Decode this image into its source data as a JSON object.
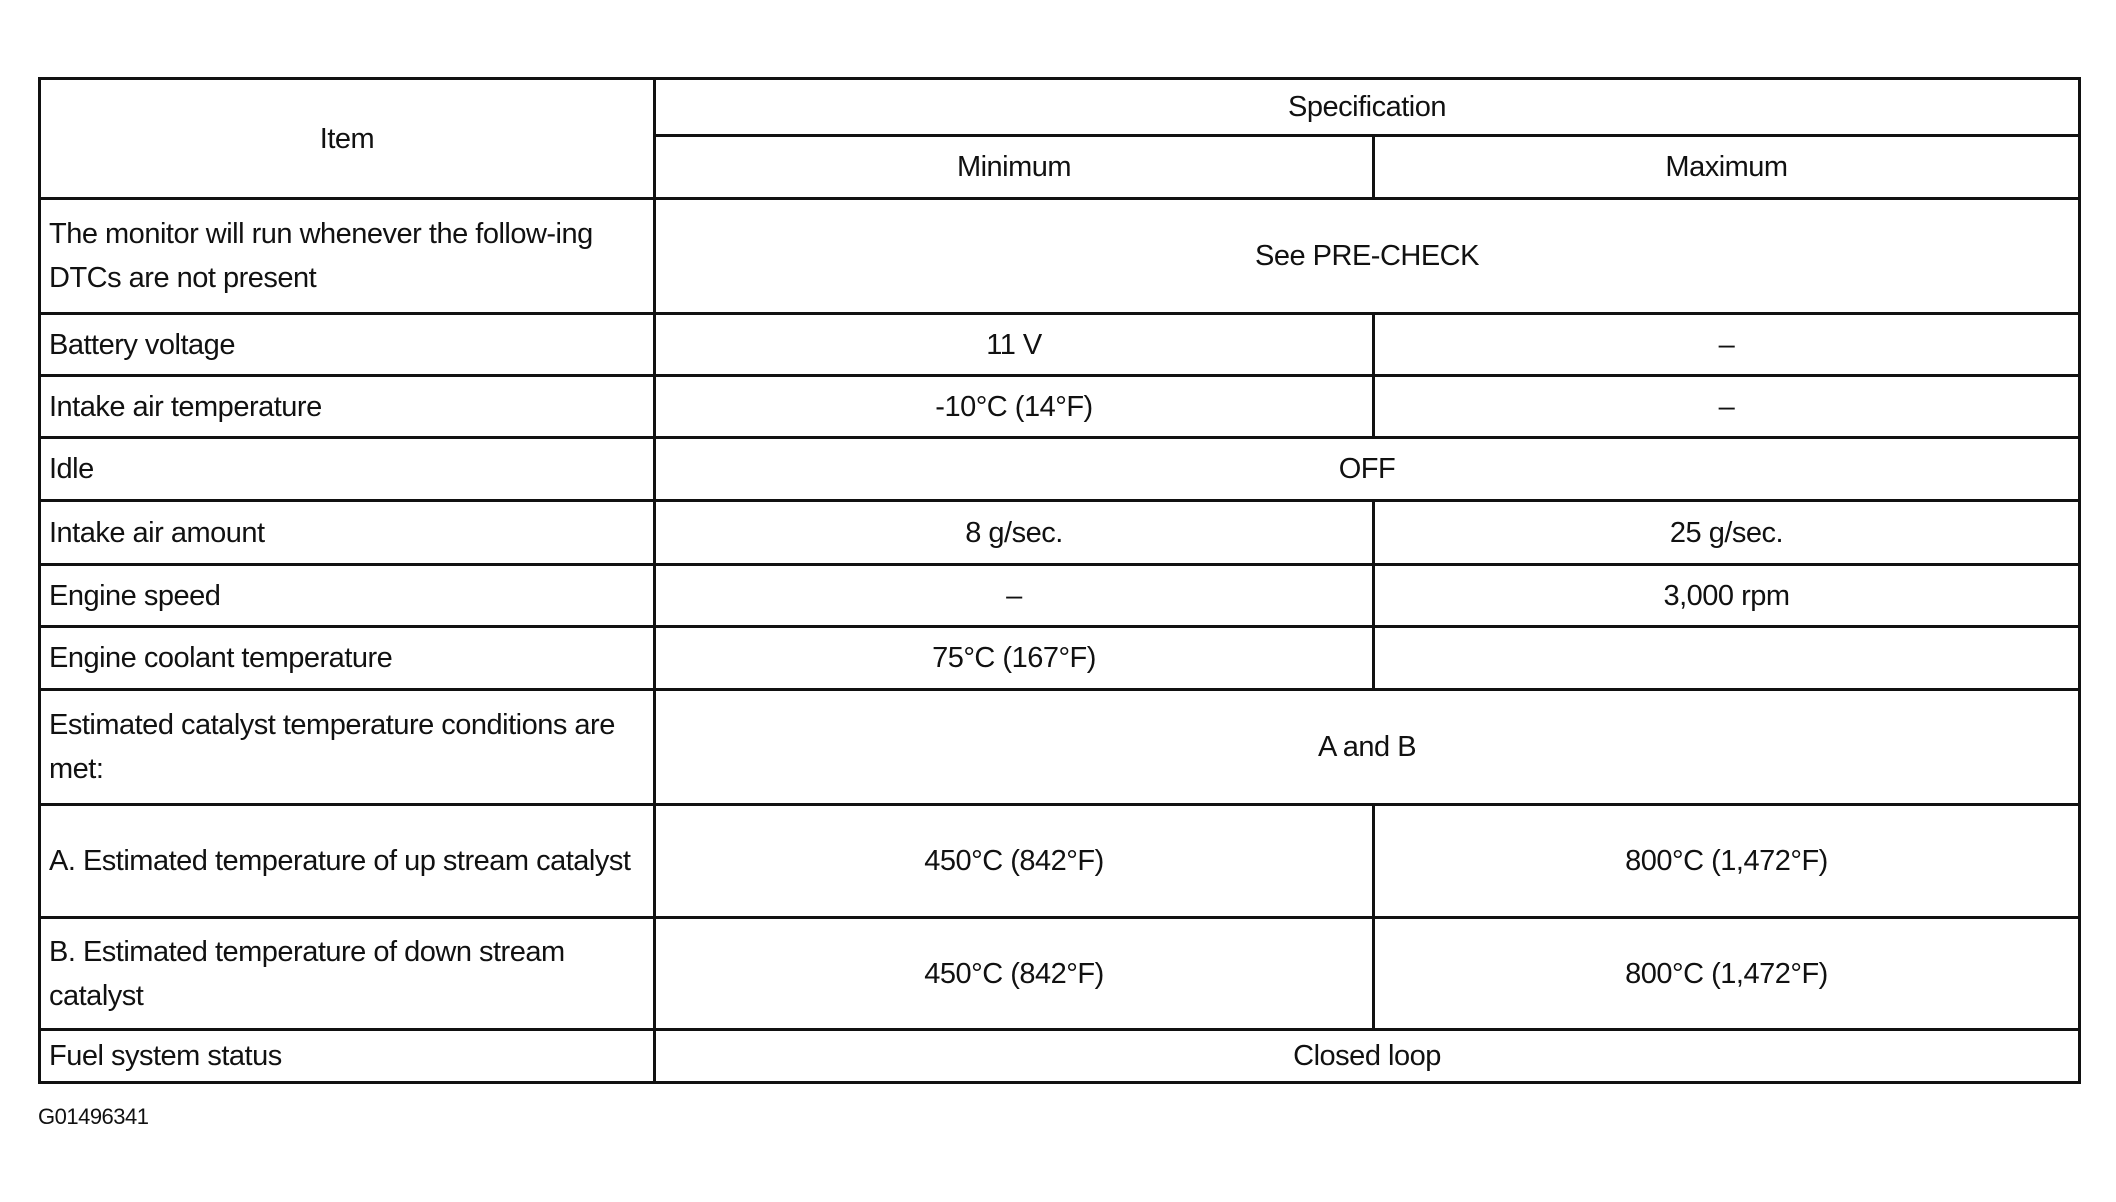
{
  "header": {
    "item": "Item",
    "specification": "Specification",
    "minimum": "Minimum",
    "maximum": "Maximum"
  },
  "rows": [
    {
      "item": "The monitor will run whenever the follow-ing DTCs are not present",
      "span": "See PRE-CHECK"
    },
    {
      "item": "Battery voltage",
      "min": "11 V",
      "max": "–"
    },
    {
      "item": "Intake air temperature",
      "min": "-10°C (14°F)",
      "max": "–"
    },
    {
      "item": "Idle",
      "span": "OFF"
    },
    {
      "item": "Intake air amount",
      "min": "8 g/sec.",
      "max": "25 g/sec."
    },
    {
      "item": "Engine speed",
      "min": "–",
      "max": "3,000 rpm"
    },
    {
      "item": "Engine coolant temperature",
      "min": "75°C (167°F)",
      "max": ""
    },
    {
      "item": "Estimated catalyst temperature conditions are met:",
      "span": "A and B"
    },
    {
      "item": "A. Estimated temperature of up stream catalyst",
      "min": "450°C (842°F)",
      "max": "800°C (1,472°F)"
    },
    {
      "item": "B. Estimated temperature of down stream catalyst",
      "min": "450°C (842°F)",
      "max": "800°C (1,472°F)"
    },
    {
      "item": "Fuel system status",
      "span": "Closed loop"
    }
  ],
  "figure_id": "G01496341"
}
